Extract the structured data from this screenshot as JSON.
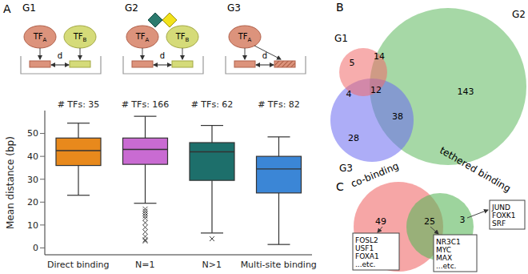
{
  "panel_labels": [
    "A",
    "B",
    "C"
  ],
  "tf_label": "TF",
  "distance_label": "d",
  "diagrams": [
    {
      "title": "G1",
      "tfs": [
        "A",
        "B"
      ],
      "ligands": false,
      "multi_site": false
    },
    {
      "title": "G2",
      "tfs": [
        "A",
        "B"
      ],
      "ligands": true,
      "multi_site": false
    },
    {
      "title": "G3",
      "tfs": [
        "A"
      ],
      "ligands": false,
      "multi_site": true
    }
  ],
  "chart_data": {
    "type": "box",
    "categories": [
      "Direct binding",
      "N=1",
      "N>1",
      "Multi-site binding"
    ],
    "count_label": "# TFs:",
    "counts": [
      35,
      166,
      62,
      82
    ],
    "colors": [
      "#e8891c",
      "#c96bd2",
      "#1d6f6b",
      "#3b86d6"
    ],
    "ylabel": "Mean distance (bp)",
    "ylim": [
      -3,
      60
    ],
    "yticks": [
      0,
      10,
      20,
      30,
      40,
      50
    ],
    "boxes": [
      {
        "whislo": 23,
        "q1": 36,
        "med": 42.5,
        "q3": 48,
        "whishi": 54.5,
        "fliers": []
      },
      {
        "whislo": 19.5,
        "q1": 36.5,
        "med": 43,
        "q3": 48,
        "whishi": 57.5,
        "fliers": [
          17,
          16,
          15,
          14,
          13,
          11,
          9,
          7,
          5,
          3.5,
          3
        ]
      },
      {
        "whislo": 6.5,
        "q1": 29.5,
        "med": 42,
        "q3": 46,
        "whishi": 53.5,
        "fliers": [
          4
        ]
      },
      {
        "whislo": 1.5,
        "q1": 24,
        "med": 34.5,
        "q3": 40,
        "whishi": 48.5,
        "fliers": []
      }
    ]
  },
  "venn_b": {
    "sets": [
      {
        "name": "G1",
        "color": "#f06a6a"
      },
      {
        "name": "G2",
        "color": "#5cb85c"
      },
      {
        "name": "G3",
        "color": "#6a6af0"
      }
    ],
    "regions": [
      {
        "sets": [
          "G1"
        ],
        "value": 5
      },
      {
        "sets": [
          "G1",
          "G2"
        ],
        "value": 14
      },
      {
        "sets": [
          "G2"
        ],
        "value": 143
      },
      {
        "sets": [
          "G1",
          "G3"
        ],
        "value": 4
      },
      {
        "sets": [
          "G1",
          "G2",
          "G3"
        ],
        "value": 12
      },
      {
        "sets": [
          "G2",
          "G3"
        ],
        "value": 38
      },
      {
        "sets": [
          "G3"
        ],
        "value": 28
      }
    ]
  },
  "venn_c": {
    "sets": [
      {
        "name": "co-binding",
        "color": "#f06a6a"
      },
      {
        "name": "tethered binding",
        "color": "#5cb85c"
      }
    ],
    "regions": [
      {
        "sets": [
          "co-binding"
        ],
        "value": 49,
        "examples": [
          "FOSL2",
          "USF1",
          "FOXA1",
          "...etc."
        ]
      },
      {
        "sets": [
          "co-binding",
          "tethered binding"
        ],
        "value": 25,
        "examples": [
          "NR3C1",
          "MYC",
          "MAX",
          "...etc."
        ]
      },
      {
        "sets": [
          "tethered binding"
        ],
        "value": 3,
        "examples": [
          "JUND",
          "FOXK1",
          "SRF"
        ]
      }
    ]
  }
}
